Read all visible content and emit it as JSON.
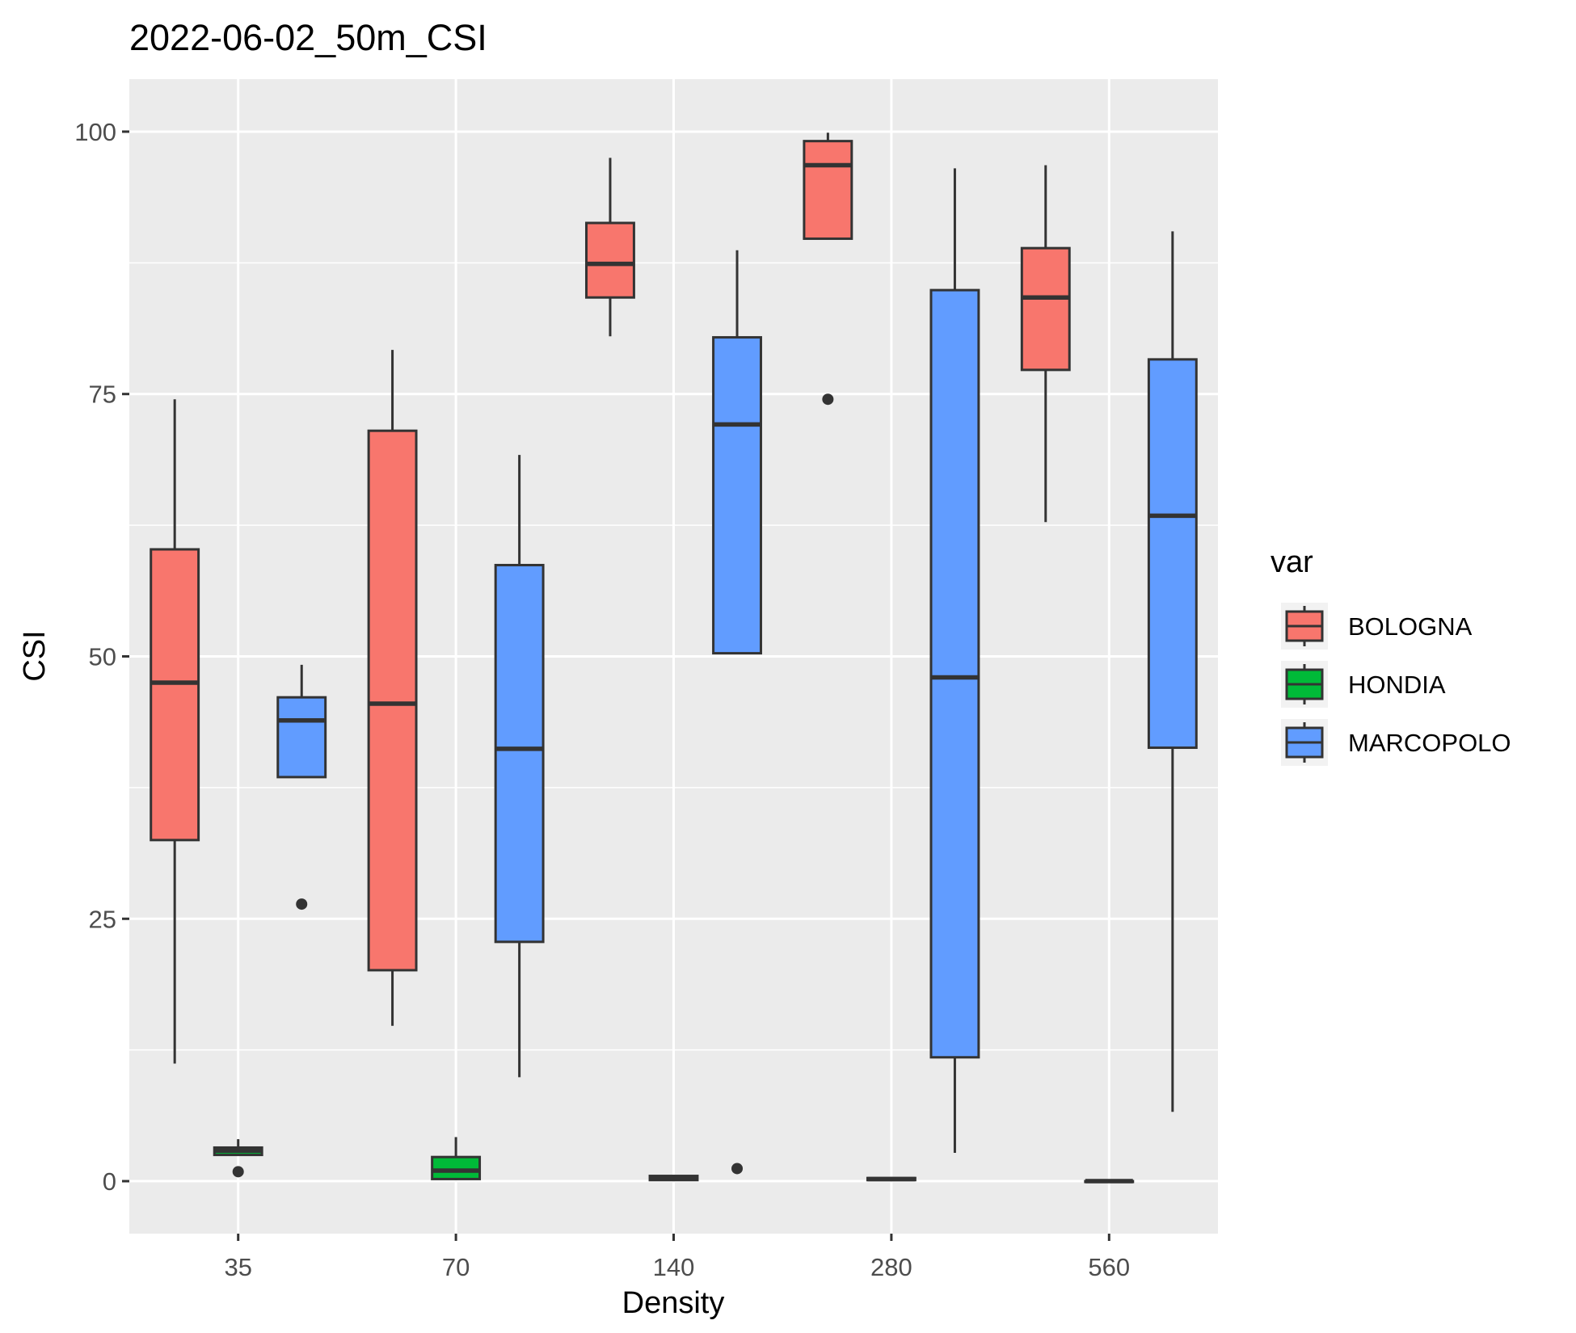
{
  "chart_data": {
    "type": "boxplot",
    "title": "2022-06-02_50m_CSI",
    "xlabel": "Density",
    "ylabel": "CSI",
    "categories": [
      "35",
      "70",
      "140",
      "280",
      "560"
    ],
    "ylim": [
      -5,
      105
    ],
    "yticks": [
      0,
      25,
      50,
      75,
      100
    ],
    "grid": true,
    "legend": {
      "title": "var",
      "position": "right"
    },
    "series": [
      {
        "name": "BOLOGNA",
        "color": "#F8766D",
        "boxes": [
          {
            "category": "35",
            "min": 11.2,
            "q1": 32.5,
            "median": 47.5,
            "q3": 60.2,
            "max": 74.5,
            "outliers": []
          },
          {
            "category": "70",
            "min": 14.8,
            "q1": 20.1,
            "median": 45.5,
            "q3": 71.5,
            "max": 79.2,
            "outliers": []
          },
          {
            "category": "140",
            "min": 80.5,
            "q1": 84.2,
            "median": 87.4,
            "q3": 91.3,
            "max": 97.5,
            "outliers": []
          },
          {
            "category": "280",
            "min": 89.8,
            "q1": 89.8,
            "median": 96.8,
            "q3": 99.1,
            "max": 99.9,
            "outliers": [
              74.5
            ]
          },
          {
            "category": "560",
            "min": 62.8,
            "q1": 77.3,
            "median": 84.2,
            "q3": 88.9,
            "max": 96.8,
            "outliers": []
          }
        ]
      },
      {
        "name": "HONDIA",
        "color": "#00BA38",
        "boxes": [
          {
            "category": "35",
            "min": 2.5,
            "q1": 2.5,
            "median": 2.9,
            "q3": 3.2,
            "max": 4.0,
            "outliers": [
              0.9
            ]
          },
          {
            "category": "70",
            "min": 0.1,
            "q1": 0.2,
            "median": 1.0,
            "q3": 2.3,
            "max": 4.2,
            "outliers": []
          },
          {
            "category": "140",
            "min": 0.0,
            "q1": 0.1,
            "median": 0.3,
            "q3": 0.5,
            "max": 0.6,
            "outliers": []
          },
          {
            "category": "280",
            "min": 0.0,
            "q1": 0.1,
            "median": 0.2,
            "q3": 0.3,
            "max": 0.4,
            "outliers": []
          },
          {
            "category": "560",
            "min": 0.0,
            "q1": 0.0,
            "median": 0.0,
            "q3": 0.0,
            "max": 0.0,
            "outliers": []
          }
        ]
      },
      {
        "name": "MARCOPOLO",
        "color": "#619CFF",
        "boxes": [
          {
            "category": "35",
            "min": 38.5,
            "q1": 38.5,
            "median": 43.9,
            "q3": 46.1,
            "max": 49.2,
            "outliers": [
              26.4
            ]
          },
          {
            "category": "70",
            "min": 9.9,
            "q1": 22.8,
            "median": 41.2,
            "q3": 58.7,
            "max": 69.2,
            "outliers": []
          },
          {
            "category": "140",
            "min": 50.3,
            "q1": 50.3,
            "median": 72.1,
            "q3": 80.4,
            "max": 88.7,
            "outliers": [
              1.2
            ]
          },
          {
            "category": "280",
            "min": 2.7,
            "q1": 11.8,
            "median": 48.0,
            "q3": 84.9,
            "max": 96.5,
            "outliers": []
          },
          {
            "category": "560",
            "min": 6.6,
            "q1": 41.3,
            "median": 63.4,
            "q3": 78.3,
            "max": 90.5,
            "outliers": []
          }
        ]
      }
    ]
  }
}
